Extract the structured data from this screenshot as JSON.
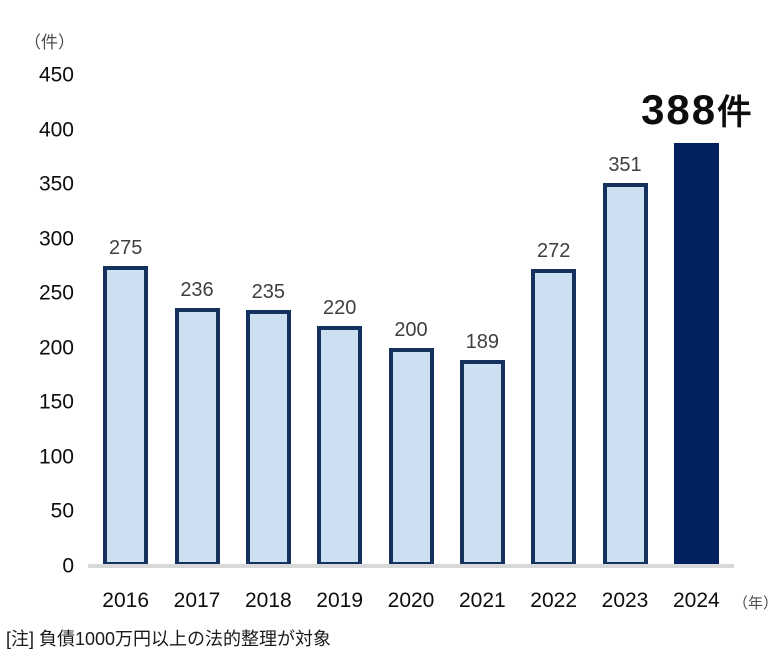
{
  "unit_label": "（件）",
  "year_unit_label": "（年）",
  "note": "[注] 負債1000万円以上の法的整理が対象",
  "colors": {
    "bar_fill": "#cce0f1",
    "bar_border": "#15325f",
    "highlight_fill": "#002060",
    "axis_line": "#d9d9d9",
    "value_label": "#3f3f3f",
    "tick_label": "#0d0d0d",
    "unit_label": "#4d4d4d"
  },
  "chart_data": {
    "type": "bar",
    "title": "",
    "categories": [
      "2016",
      "2017",
      "2018",
      "2019",
      "2020",
      "2021",
      "2022",
      "2023",
      "2024"
    ],
    "values": [
      275,
      236,
      235,
      220,
      200,
      189,
      272,
      351,
      388
    ],
    "value_labels": [
      "275",
      "236",
      "235",
      "220",
      "200",
      "189",
      "272",
      "351"
    ],
    "highlight_index": 8,
    "highlight_label_number": "388",
    "highlight_label_unit": "件",
    "xlabel": "",
    "ylabel": "（件）",
    "ylim": [
      0,
      450
    ],
    "yticks": [
      0,
      50,
      100,
      150,
      200,
      250,
      300,
      350,
      400,
      450
    ],
    "grid": false,
    "legend": false
  }
}
